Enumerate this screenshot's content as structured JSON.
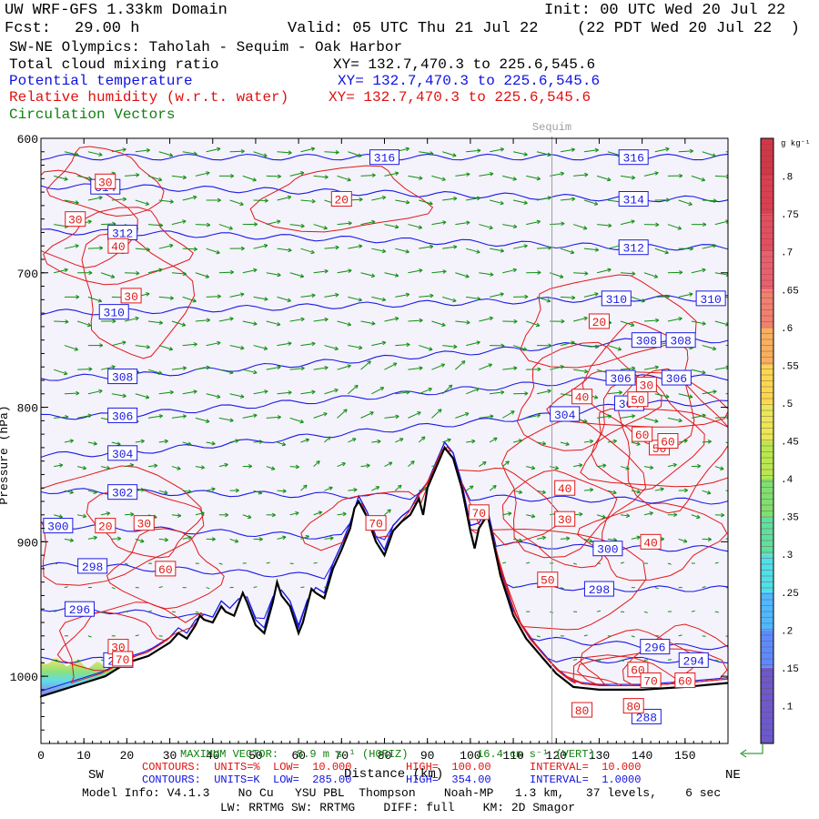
{
  "header": {
    "title": "UW WRF-GFS 1.33km Domain",
    "init": "Init: 00 UTC Wed 20 Jul 22",
    "fcst_label": "Fcst:",
    "fcst_value": "29.00 h",
    "valid": "Valid: 05 UTC Thu 21 Jul 22",
    "local": "(22 PDT Wed 20 Jul 22  )",
    "cross_section": "SW-NE Olympics: Taholah - Sequim - Oak Harbor",
    "field_cloud": "Total cloud mixing ratio",
    "field_cloud_xy": "XY= 132.7,470.3 to 225.6,545.6",
    "field_theta": "Potential temperature",
    "field_theta_xy": "XY= 132.7,470.3 to 225.6,545.6",
    "field_rh": "Relative humidity (w.r.t. water)",
    "field_rh_xy": "XY= 132.7,470.3 to 225.6,545.6",
    "field_vectors": "Circulation Vectors"
  },
  "footer": {
    "max_vector": "MAXIMUM VECTOR:",
    "max_vector_value": "8.9 m s⁻¹ (HORIZ)",
    "max_vector_vert": "16.4 cm s⁻¹ (VERT)",
    "rh_contours": "CONTOURS:  UNITS=%  LOW=  10.000",
    "rh_high": "HIGH=  100.00",
    "rh_interval": "INTERVAL=  10.000",
    "theta_contours": "CONTOURS:  UNITS=K  LOW=  285.00",
    "theta_high": "HIGH=  354.00",
    "theta_interval": "INTERVAL=  1.0000",
    "model_info": "Model Info: V4.1.3    No Cu   YSU PBL  Thompson    Noah-MP   1.3 km,   37 levels,    6 sec",
    "model_info2": "LW: RRTMG SW: RRTMG    DIFF: full    KM: 2D Smagor",
    "sw": "SW",
    "ne": "NE",
    "distance_label": "Distance (km)"
  },
  "chart_data": {
    "type": "cross-section",
    "x_label": "Distance (km)",
    "y_label": "Pressure (hPa)",
    "xlim": [
      0,
      160
    ],
    "ylim": [
      1050,
      600
    ],
    "x_ticks": [
      0,
      10,
      20,
      30,
      40,
      50,
      60,
      70,
      80,
      90,
      100,
      110,
      120,
      130,
      140,
      150
    ],
    "y_ticks": [
      600,
      700,
      800,
      900,
      1000
    ],
    "marker": {
      "label": "Sequim",
      "x": 119
    },
    "terrain": [
      [
        0,
        1015
      ],
      [
        5,
        1010
      ],
      [
        10,
        1005
      ],
      [
        15,
        1000
      ],
      [
        20,
        990
      ],
      [
        25,
        985
      ],
      [
        30,
        975
      ],
      [
        32,
        968
      ],
      [
        34,
        972
      ],
      [
        36,
        962
      ],
      [
        37,
        955
      ],
      [
        38,
        958
      ],
      [
        40,
        960
      ],
      [
        42,
        948
      ],
      [
        43,
        952
      ],
      [
        45,
        955
      ],
      [
        47,
        938
      ],
      [
        48,
        945
      ],
      [
        50,
        962
      ],
      [
        52,
        968
      ],
      [
        54,
        945
      ],
      [
        55,
        930
      ],
      [
        56,
        940
      ],
      [
        58,
        948
      ],
      [
        60,
        968
      ],
      [
        61,
        960
      ],
      [
        63,
        935
      ],
      [
        64,
        938
      ],
      [
        66,
        942
      ],
      [
        68,
        920
      ],
      [
        70,
        906
      ],
      [
        72,
        890
      ],
      [
        73,
        875
      ],
      [
        74,
        870
      ],
      [
        76,
        882
      ],
      [
        78,
        900
      ],
      [
        80,
        910
      ],
      [
        82,
        892
      ],
      [
        84,
        885
      ],
      [
        86,
        880
      ],
      [
        88,
        868
      ],
      [
        89,
        880
      ],
      [
        90,
        860
      ],
      [
        92,
        845
      ],
      [
        94,
        830
      ],
      [
        96,
        838
      ],
      [
        98,
        860
      ],
      [
        100,
        892
      ],
      [
        101,
        905
      ],
      [
        102,
        890
      ],
      [
        104,
        880
      ],
      [
        105,
        895
      ],
      [
        107,
        925
      ],
      [
        110,
        955
      ],
      [
        113,
        972
      ],
      [
        117,
        987
      ],
      [
        120,
        998
      ],
      [
        124,
        1008
      ],
      [
        130,
        1010
      ],
      [
        140,
        1010
      ],
      [
        150,
        1008
      ],
      [
        160,
        1005
      ]
    ],
    "potential_temperature_contours_K": [
      {
        "value": 316,
        "labels": [
          [
            80,
            614
          ],
          [
            138,
            614
          ]
        ]
      },
      {
        "value": 314,
        "labels": [
          [
            15,
            636
          ],
          [
            138,
            645
          ]
        ]
      },
      {
        "value": 312,
        "labels": [
          [
            19,
            670
          ],
          [
            138,
            681
          ]
        ]
      },
      {
        "value": 310,
        "labels": [
          [
            17,
            729
          ],
          [
            134,
            719
          ],
          [
            156,
            719
          ]
        ]
      },
      {
        "value": 308,
        "labels": [
          [
            19,
            777
          ],
          [
            141,
            750
          ],
          [
            149,
            750
          ]
        ]
      },
      {
        "value": 306,
        "labels": [
          [
            19,
            806
          ],
          [
            135,
            778
          ],
          [
            148,
            778
          ]
        ]
      },
      {
        "value": 304,
        "labels": [
          [
            19,
            834
          ],
          [
            122,
            805
          ],
          [
            137,
            797
          ]
        ]
      },
      {
        "value": 302,
        "labels": [
          [
            19,
            863
          ]
        ]
      },
      {
        "value": 300,
        "labels": [
          [
            4,
            888
          ],
          [
            132,
            905
          ]
        ]
      },
      {
        "value": 298,
        "labels": [
          [
            12,
            918
          ],
          [
            130,
            935
          ]
        ]
      },
      {
        "value": 296,
        "labels": [
          [
            9,
            950
          ],
          [
            143,
            978
          ]
        ]
      },
      {
        "value": 294,
        "labels": [
          [
            18,
            988
          ],
          [
            152,
            988
          ]
        ]
      },
      {
        "value": 288,
        "labels": [
          [
            141,
            1030
          ]
        ]
      }
    ],
    "relative_humidity_contours_pct": [
      {
        "value": 20,
        "labels": [
          [
            70,
            645
          ],
          [
            130,
            736
          ],
          [
            15,
            888
          ]
        ]
      },
      {
        "value": 30,
        "labels": [
          [
            15,
            632
          ],
          [
            8,
            660
          ],
          [
            21,
            717
          ],
          [
            24,
            886
          ],
          [
            122,
            883
          ],
          [
            141,
            783
          ],
          [
            18,
            978
          ]
        ]
      },
      {
        "value": 40,
        "labels": [
          [
            18,
            680
          ],
          [
            126,
            792
          ],
          [
            122,
            860
          ],
          [
            142,
            900
          ]
        ]
      },
      {
        "value": 50,
        "labels": [
          [
            139,
            794
          ],
          [
            144,
            830
          ],
          [
            118,
            928
          ]
        ]
      },
      {
        "value": 60,
        "labels": [
          [
            29,
            920
          ],
          [
            140,
            820
          ],
          [
            146,
            825
          ],
          [
            139,
            995
          ],
          [
            150,
            1003
          ]
        ]
      },
      {
        "value": 70,
        "labels": [
          [
            78,
            886
          ],
          [
            102,
            878
          ],
          [
            19,
            987
          ],
          [
            142,
            1003
          ]
        ]
      },
      {
        "value": 80,
        "labels": [
          [
            126,
            1025
          ],
          [
            138,
            1022
          ]
        ]
      }
    ],
    "colorbar": {
      "unit": "g kg⁻¹",
      "ticks": [
        0.1,
        0.15,
        0.2,
        0.25,
        0.3,
        0.35,
        0.4,
        0.45,
        0.5,
        0.55,
        0.6,
        0.65,
        0.7,
        0.75,
        0.8
      ],
      "colors": [
        "#6a5acd",
        "#5b8cff",
        "#4fb8ff",
        "#4fe0e8",
        "#5ee0a0",
        "#7fe070",
        "#b8e850",
        "#e8e858",
        "#f8d850",
        "#f8b060",
        "#f08070",
        "#e86070",
        "#e05060",
        "#d84050",
        "#d03848"
      ]
    },
    "cloud_mixing_ratio": "low cloud near surface at 0-18 km, ~990-1015 hPa, values up to ~0.4 g kg⁻¹"
  }
}
